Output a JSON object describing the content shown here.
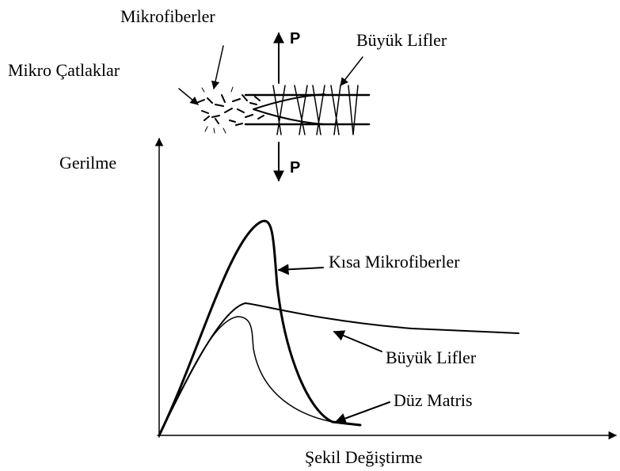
{
  "axes": {
    "y_label": "Gerilme",
    "x_label": "Şekil Değiştirme"
  },
  "curves": [
    {
      "label": "Kısa Mikrofiberler"
    },
    {
      "label": "Büyük Lifler"
    },
    {
      "label": "Düz Matris"
    }
  ],
  "inset": {
    "microfibers": "Mikrofiberler",
    "microcracks": "Mikro Çatlaklar",
    "large_fibers": "Büyük Lifler",
    "load_top": "P",
    "load_bottom": "P"
  }
}
